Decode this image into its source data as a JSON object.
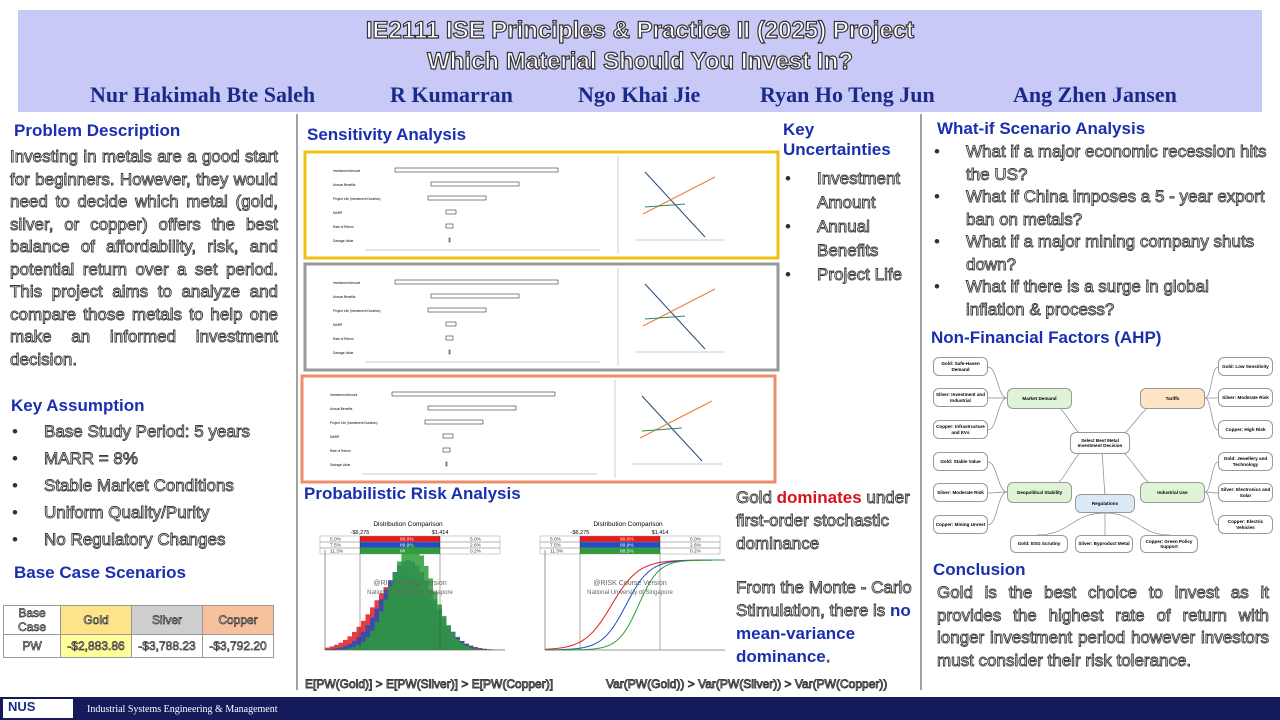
{
  "header": {
    "title": "IE2111 ISE Principles & Practice II (2025) Project",
    "subtitle": "Which Material Should You Invest In?",
    "authors": [
      "Nur Hakimah Bte Saleh",
      "R Kumarran",
      "Ngo Khai Jie",
      "Ryan Ho Teng Jun",
      "Ang Zhen Jansen"
    ]
  },
  "problem": {
    "heading": "Problem Description",
    "text": "Investing in metals are a good start for beginners. However, they would need to decide which metal (gold, silver, or copper) offers the best balance of affordability, risk, and potential return over a set period. This project aims to analyze and compare those metals to help one make an informed investment decision."
  },
  "assumptions": {
    "heading": "Key Assumption",
    "items": [
      "Base Study Period: 5 years",
      "MARR = 8%",
      "Stable Market Conditions",
      "Uniform Quality/Purity",
      "No Regulatory Changes"
    ]
  },
  "base_case": {
    "heading": "Base Case Scenarios",
    "table": {
      "header": [
        "Base Case",
        "Gold",
        "Silver",
        "Copper"
      ],
      "rows": [
        [
          "PW",
          "-$2,883.86",
          "-$3,788.23",
          "-$3,792.20"
        ]
      ]
    }
  },
  "sensitivity": {
    "heading": "Sensitivity Analysis",
    "factors": [
      "Investment Amount",
      "Annual Benefits",
      "Project Life (Investment Duration)",
      "MARR",
      "Rate of Return",
      "Salvage Value"
    ]
  },
  "uncertainties": {
    "heading": "Key Uncertainties",
    "items": [
      "Investment Amount",
      "Annual Benefits",
      "Project Life"
    ]
  },
  "risk": {
    "heading": "Probabilistic Risk Analysis",
    "chart_title": "Distribution Comparison",
    "markers": [
      "-$6,275",
      "$1,414"
    ],
    "table": [
      [
        "5.0%",
        "90.0%",
        "5.0%"
      ],
      [
        "7.5%",
        "89.9%",
        "2.6%"
      ],
      [
        "11.3%",
        "88.5%",
        "0.2%"
      ]
    ],
    "watermark": [
      "@RISK Course Version",
      "National University of Singapore"
    ],
    "captions": [
      "E[PW(Gold)] > E[PW(Silver)] > E[PW(Copper)]",
      "Var(PW(Gold)) > Var(PW(Silver)) > Var(PW(Copper))"
    ]
  },
  "findings": {
    "first": {
      "before": "Gold ",
      "emphasis": "dominates",
      "after": " under first-order stochastic dominance"
    },
    "second": {
      "before": "From the Monte - Carlo Stimulation, there is ",
      "emphasis": "no mean-variance dominance",
      "after": "."
    }
  },
  "whatif": {
    "heading": "What-if Scenario Analysis",
    "items": [
      "What if a major economic recession hits the US?",
      "What if China imposes a 5 - year export ban on metals?",
      "What if a major mining company shuts down?",
      "What if there is a surge in global inflation & process?"
    ]
  },
  "ahp": {
    "heading": "Non-Financial Factors (AHP)",
    "goal": "Select Best Metal Investment Decision",
    "criteria": [
      "Market Demand",
      "Tariffs",
      "Geopolitical Stability",
      "Industrial Use",
      "Regulations"
    ],
    "alternatives": [
      "Gold: Safe-Haven Demand",
      "Silver: Investment and Industrial",
      "Copper: Infrastructure and EVs",
      "Gold: Low Sensitivity",
      "Silver: Moderate Risk",
      "Copper: High Risk",
      "Gold: Stable Value",
      "Silver: Moderate Risk",
      "Copper: Mining Unrest",
      "Gold: Jewellery and Technology",
      "Silver: Electronics and Solar",
      "Copper: Electric Vehicles",
      "Gold: ESG Scrutiny",
      "Silver: Byproduct Metal",
      "Copper: Green Policy Support"
    ]
  },
  "conclusion": {
    "heading": "Conclusion",
    "text": "Gold is the best choice to invest as it provides the highest rate of return with longer investment period however investors must consider their risk tolerance."
  },
  "footer": {
    "logo": "NUS",
    "text": "Industrial Systems Engineering & Management"
  }
}
